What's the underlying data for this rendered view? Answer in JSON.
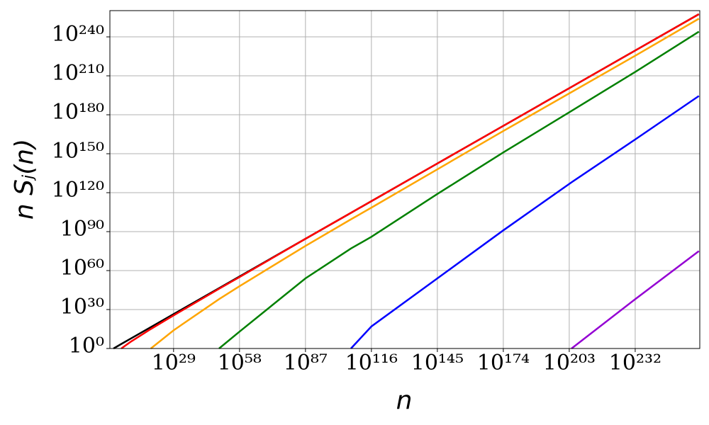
{
  "chart_data": {
    "type": "line",
    "xlabel": "n",
    "ylabel": "n Sⱼ(n)",
    "xscale": "log",
    "yscale": "log",
    "grid": true,
    "x": [
      400.0,
      1000000.0,
      10000000000.0,
      1e+19,
      1e+29,
      1e+49,
      1e+58,
      1e+87,
      1e+107,
      1e+116,
      1e+145,
      1e+174,
      1e+204,
      1e+232,
      1e+260
    ],
    "series": [
      {
        "color": "#000000",
        "values": [
          1,
          3000.0,
          30000000.0,
          3e+16,
          3e+26,
          3e+46,
          3e+55,
          3e+84,
          3e+104,
          3e+113,
          3e+142,
          3e+171,
          3e+201,
          3e+229,
          3e+257
        ]
      },
      {
        "color": "#ff0000",
        "values": [
          null,
          1,
          100000.0,
          1000000000000000.0,
          3e+25,
          1e+46,
          1e+55,
          3e+84,
          3e+104,
          3e+113,
          3e+142,
          3e+171,
          3e+201,
          3e+229,
          3e+257
        ]
      },
      {
        "color": "#ffa500",
        "values": [
          null,
          null,
          null,
          1,
          100000000000000.0,
          1e+38,
          1e+48,
          1e+79,
          3e+99,
          3e+108,
          1e+138,
          3e+167,
          3e+197,
          3e+225,
          1e+254
        ]
      },
      {
        "color": "#008000",
        "values": [
          null,
          null,
          null,
          null,
          null,
          1,
          10000000000000.0,
          1e+54,
          1e+77,
          1e+86,
          1e+119,
          1e+151,
          1e+183,
          1e+213,
          1e+244
        ]
      },
      {
        "color": "#0000ff",
        "values": [
          null,
          null,
          null,
          null,
          null,
          null,
          null,
          null,
          1,
          1e+17,
          1e+54,
          1e+91,
          1e+128,
          1e+161,
          3e+194
        ]
      },
      {
        "color": "#9400d3",
        "values": [
          null,
          null,
          null,
          null,
          null,
          null,
          null,
          null,
          null,
          null,
          null,
          null,
          1,
          1e+38,
          1e+75
        ]
      }
    ],
    "xlim": [
      10.0,
      2.5e+260
    ],
    "ylim": [
      1,
      1.6e+260
    ],
    "xticks": [
      {
        "value": 1e+29,
        "label": "10²⁹"
      },
      {
        "value": 1e+58,
        "label": "10⁵⁸"
      },
      {
        "value": 1e+87,
        "label": "10⁸⁷"
      },
      {
        "value": 1e+116,
        "label": "10¹¹⁶"
      },
      {
        "value": 1e+145,
        "label": "10¹⁴⁵"
      },
      {
        "value": 1e+174,
        "label": "10¹⁷⁴"
      },
      {
        "value": 1e+203,
        "label": "10²⁰³"
      },
      {
        "value": 1e+232,
        "label": "10²³²"
      }
    ],
    "yticks": [
      {
        "value": 1,
        "label": "10⁰"
      },
      {
        "value": 1e+30,
        "label": "10³⁰"
      },
      {
        "value": 1e+60,
        "label": "10⁶⁰"
      },
      {
        "value": 1e+90,
        "label": "10⁹⁰"
      },
      {
        "value": 1e+120,
        "label": "10¹²⁰"
      },
      {
        "value": 1e+150,
        "label": "10¹⁵⁰"
      },
      {
        "value": 1e+180,
        "label": "10¹⁸⁰"
      },
      {
        "value": 1e+210,
        "label": "10²¹⁰"
      },
      {
        "value": 1e+240,
        "label": "10²⁴⁰"
      }
    ]
  }
}
